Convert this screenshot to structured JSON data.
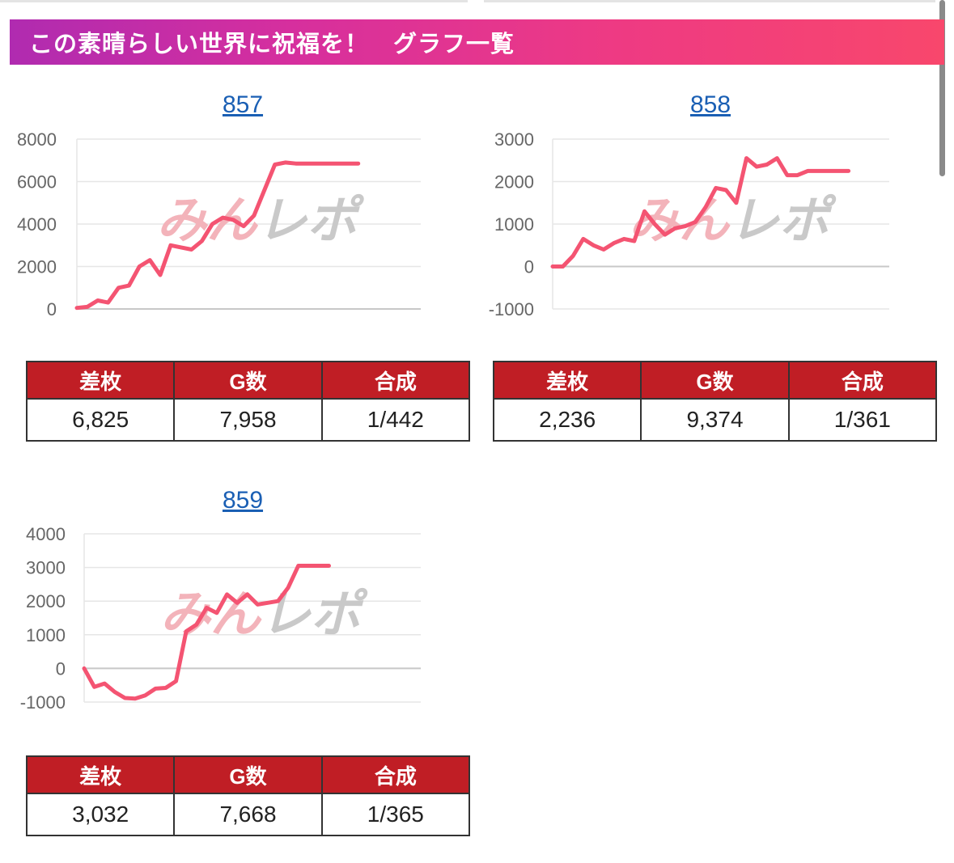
{
  "header": {
    "title": "この素晴らしい世界に祝福を！　グラフ一覧"
  },
  "watermark": {
    "part1": "みん",
    "part2": "レポ"
  },
  "columns": [
    "差枚",
    "G数",
    "合成"
  ],
  "colors": {
    "line": "#f45472",
    "header_from": "#b02bb0",
    "header_to": "#f8476c",
    "table_head": "#c01e25"
  },
  "machines": [
    {
      "id": "857",
      "stats": {
        "samai": "6,825",
        "games": "7,958",
        "gousei": "1/442"
      }
    },
    {
      "id": "858",
      "stats": {
        "samai": "2,236",
        "games": "9,374",
        "gousei": "1/361"
      }
    },
    {
      "id": "859",
      "stats": {
        "samai": "3,032",
        "games": "7,668",
        "gousei": "1/365"
      }
    }
  ],
  "chart_data": [
    {
      "type": "line",
      "title": "857",
      "ylim": [
        0,
        8000
      ],
      "yticks": [
        0,
        2000,
        4000,
        6000,
        8000
      ],
      "xlim": [
        0,
        33
      ],
      "grid": true,
      "x": [
        0,
        1,
        2,
        3,
        4,
        5,
        6,
        7,
        8,
        9,
        10,
        11,
        12,
        13,
        14,
        15,
        16,
        17,
        18,
        19,
        20,
        21,
        22,
        23,
        24,
        25,
        26,
        27
      ],
      "values": [
        50,
        100,
        400,
        300,
        1000,
        1100,
        2000,
        2300,
        1600,
        3000,
        2900,
        2800,
        3200,
        4000,
        4300,
        4200,
        3900,
        4400,
        5600,
        6800,
        6900,
        6850,
        6850,
        6850,
        6850,
        6850,
        6850,
        6850
      ]
    },
    {
      "type": "line",
      "title": "858",
      "ylim": [
        -1000,
        3000
      ],
      "yticks": [
        -1000,
        0,
        1000,
        2000,
        3000
      ],
      "xlim": [
        0,
        33
      ],
      "grid": true,
      "x": [
        0,
        1,
        2,
        3,
        4,
        5,
        6,
        7,
        8,
        9,
        10,
        11,
        12,
        13,
        14,
        15,
        16,
        17,
        18,
        19,
        20,
        21,
        22,
        23,
        24,
        25,
        26,
        27,
        28,
        29
      ],
      "values": [
        0,
        0,
        250,
        650,
        500,
        400,
        550,
        650,
        600,
        1300,
        1000,
        750,
        900,
        950,
        1050,
        1400,
        1850,
        1800,
        1500,
        2550,
        2350,
        2400,
        2550,
        2150,
        2150,
        2250,
        2250,
        2250,
        2250,
        2250
      ]
    },
    {
      "type": "line",
      "title": "859",
      "ylim": [
        -1000,
        4000
      ],
      "yticks": [
        -1000,
        0,
        1000,
        2000,
        3000,
        4000
      ],
      "xlim": [
        0,
        33
      ],
      "grid": true,
      "x": [
        0,
        1,
        2,
        3,
        4,
        5,
        6,
        7,
        8,
        9,
        10,
        11,
        12,
        13,
        14,
        15,
        16,
        17,
        18,
        19,
        20,
        21,
        22,
        23,
        24
      ],
      "values": [
        0,
        -550,
        -450,
        -700,
        -880,
        -900,
        -800,
        -600,
        -580,
        -380,
        1100,
        1300,
        1800,
        1650,
        2200,
        1950,
        2200,
        1900,
        1950,
        2000,
        2400,
        3050,
        3050,
        3050,
        3050
      ]
    }
  ]
}
